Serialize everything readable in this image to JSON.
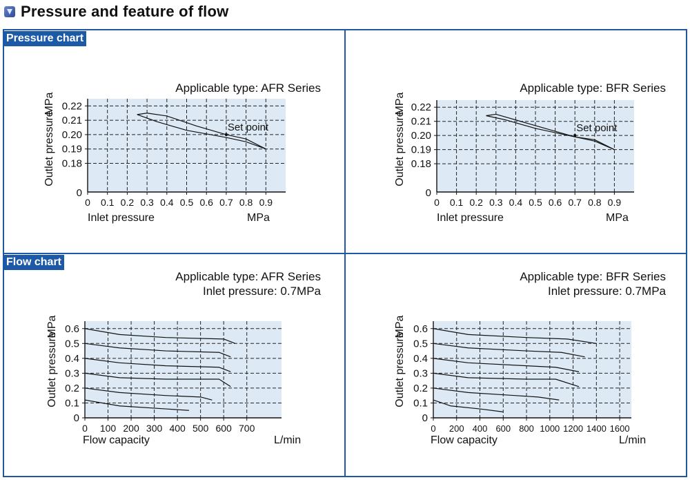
{
  "header": {
    "title": "Pressure and feature of flow"
  },
  "sections": {
    "pressure_label": "Pressure chart",
    "flow_label": "Flow chart"
  },
  "chart_data": [
    {
      "type": "line",
      "subtitle": [
        "Applicable type: AFR Series"
      ],
      "xlabel": "Inlet pressure",
      "xunit": "MPa",
      "ylabel": "Outlet pressure",
      "yunit": "MPa",
      "xlim": [
        0,
        1.0
      ],
      "ylim": [
        0.16,
        0.225
      ],
      "xticks": [
        0,
        0.1,
        0.2,
        0.3,
        0.4,
        0.5,
        0.6,
        0.7,
        0.8,
        0.9
      ],
      "xticklabels": [
        "0",
        "0.1",
        "0.2",
        "0.3",
        "0.4",
        "0.5",
        "0.6",
        "0.7",
        "0.8",
        "0.9"
      ],
      "yticks": [
        0.18,
        0.19,
        0.2,
        0.21,
        0.22
      ],
      "yticklabels": [
        "0.18",
        "0.19",
        "0.20",
        "0.21",
        "0.22"
      ],
      "yzero_label": "0",
      "annotation": {
        "text": "Set point",
        "x": 0.7,
        "y": 0.2
      },
      "series": [
        {
          "x": [
            0.25,
            0.35,
            0.5,
            0.7,
            0.8,
            0.9
          ],
          "y": [
            0.214,
            0.209,
            0.203,
            0.198,
            0.195,
            0.19
          ]
        },
        {
          "x": [
            0.25,
            0.3,
            0.4,
            0.55,
            0.7,
            0.8,
            0.9
          ],
          "y": [
            0.214,
            0.215,
            0.213,
            0.206,
            0.2,
            0.197,
            0.19
          ]
        }
      ],
      "grid": true,
      "background": "#dde9f5"
    },
    {
      "type": "line",
      "subtitle": [
        "Applicable type: BFR Series"
      ],
      "xlabel": "Inlet pressure",
      "xunit": "MPa",
      "ylabel": "Outlet pressure",
      "yunit": "MPa",
      "xlim": [
        0,
        1.0
      ],
      "ylim": [
        0.16,
        0.225
      ],
      "xticks": [
        0,
        0.1,
        0.2,
        0.3,
        0.4,
        0.5,
        0.6,
        0.7,
        0.8,
        0.9
      ],
      "xticklabels": [
        "0",
        "0.1",
        "0.2",
        "0.3",
        "0.4",
        "0.5",
        "0.6",
        "0.7",
        "0.8",
        "0.9"
      ],
      "yticks": [
        0.18,
        0.19,
        0.2,
        0.21,
        0.22
      ],
      "yticklabels": [
        "0.18",
        "0.19",
        "0.20",
        "0.21",
        "0.22"
      ],
      "yzero_label": "0",
      "annotation": {
        "text": "Set point",
        "x": 0.7,
        "y": 0.2
      },
      "series": [
        {
          "x": [
            0.25,
            0.35,
            0.5,
            0.7,
            0.8,
            0.9
          ],
          "y": [
            0.214,
            0.211,
            0.205,
            0.199,
            0.196,
            0.19
          ]
        },
        {
          "x": [
            0.25,
            0.3,
            0.45,
            0.6,
            0.7,
            0.8,
            0.9
          ],
          "y": [
            0.214,
            0.215,
            0.209,
            0.203,
            0.199,
            0.197,
            0.19
          ]
        }
      ],
      "grid": true,
      "background": "#dde9f5"
    },
    {
      "type": "line",
      "subtitle": [
        "Applicable type: AFR Series",
        "Inlet pressure: 0.7MPa"
      ],
      "xlabel": "Flow capacity",
      "xunit": "L/min",
      "ylabel": "Outlet pressure",
      "yunit": "MPa",
      "xlim": [
        0,
        850
      ],
      "ylim": [
        0,
        0.65
      ],
      "xticks": [
        0,
        100,
        200,
        300,
        400,
        500,
        600,
        700
      ],
      "xticklabels": [
        "0",
        "100",
        "200",
        "300",
        "400",
        "500",
        "600",
        "700"
      ],
      "yticks": [
        0,
        0.1,
        0.2,
        0.3,
        0.4,
        0.5,
        0.6
      ],
      "yticklabels": [
        "0",
        "0.1",
        "0.2",
        "0.3",
        "0.4",
        "0.5",
        "0.6"
      ],
      "series": [
        {
          "x": [
            0,
            150,
            350,
            600,
            650
          ],
          "y": [
            0.6,
            0.56,
            0.54,
            0.53,
            0.5
          ]
        },
        {
          "x": [
            0,
            150,
            350,
            580,
            630
          ],
          "y": [
            0.5,
            0.47,
            0.45,
            0.44,
            0.41
          ]
        },
        {
          "x": [
            0,
            150,
            350,
            580,
            630
          ],
          "y": [
            0.4,
            0.37,
            0.35,
            0.34,
            0.31
          ]
        },
        {
          "x": [
            0,
            150,
            350,
            580,
            630
          ],
          "y": [
            0.3,
            0.27,
            0.26,
            0.26,
            0.21
          ]
        },
        {
          "x": [
            0,
            150,
            350,
            500,
            550
          ],
          "y": [
            0.2,
            0.17,
            0.15,
            0.14,
            0.12
          ]
        },
        {
          "x": [
            0,
            150,
            350,
            450
          ],
          "y": [
            0.12,
            0.08,
            0.06,
            0.05
          ]
        }
      ],
      "grid": true,
      "background": "#dde9f5"
    },
    {
      "type": "line",
      "subtitle": [
        "Applicable type: BFR Series",
        "Inlet pressure: 0.7MPa"
      ],
      "xlabel": "Flow capacity",
      "xunit": "L/min",
      "ylabel": "Outlet pressure",
      "yunit": "MPa",
      "xlim": [
        0,
        1700
      ],
      "ylim": [
        0,
        0.65
      ],
      "xticks": [
        0,
        200,
        400,
        600,
        800,
        1000,
        1200,
        1400,
        1600
      ],
      "xticklabels": [
        "0",
        "200",
        "400",
        "600",
        "800",
        "1000",
        "1200",
        "1400",
        "1600"
      ],
      "yticks": [
        0,
        0.1,
        0.2,
        0.3,
        0.4,
        0.5,
        0.6
      ],
      "yticklabels": [
        "0",
        "0.1",
        "0.2",
        "0.3",
        "0.4",
        "0.5",
        "0.6"
      ],
      "series": [
        {
          "x": [
            0,
            300,
            800,
            1150,
            1400
          ],
          "y": [
            0.6,
            0.56,
            0.54,
            0.53,
            0.5
          ]
        },
        {
          "x": [
            0,
            300,
            800,
            1100,
            1300
          ],
          "y": [
            0.5,
            0.47,
            0.45,
            0.44,
            0.41
          ]
        },
        {
          "x": [
            0,
            300,
            800,
            1050,
            1250
          ],
          "y": [
            0.4,
            0.37,
            0.35,
            0.34,
            0.31
          ]
        },
        {
          "x": [
            0,
            300,
            800,
            1050,
            1250
          ],
          "y": [
            0.3,
            0.27,
            0.26,
            0.26,
            0.21
          ]
        },
        {
          "x": [
            0,
            300,
            700,
            900,
            1080
          ],
          "y": [
            0.2,
            0.17,
            0.15,
            0.14,
            0.12
          ]
        },
        {
          "x": [
            0,
            150,
            400,
            600
          ],
          "y": [
            0.12,
            0.08,
            0.06,
            0.04
          ]
        }
      ],
      "grid": true,
      "background": "#dde9f5"
    }
  ]
}
